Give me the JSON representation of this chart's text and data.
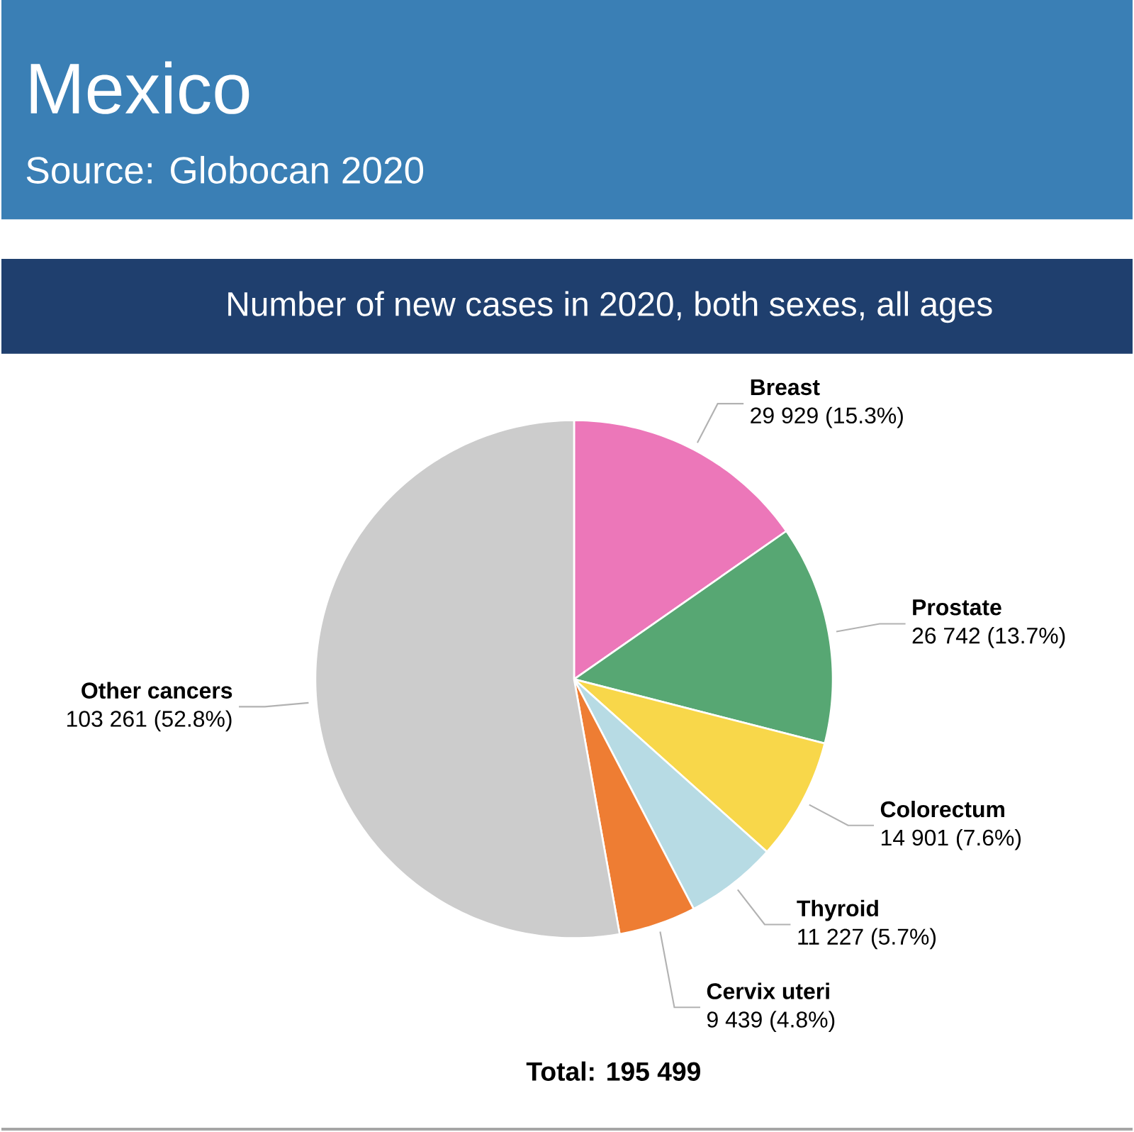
{
  "chart_data": {
    "type": "pie",
    "title": "Mexico",
    "subtitle": "Number of new cases in 2020, both sexes, all ages",
    "categories": [
      "Breast",
      "Prostate",
      "Colorectum",
      "Thyroid",
      "Cervix uteri",
      "Other cancers"
    ],
    "values": [
      29929,
      26742,
      14901,
      11227,
      9439,
      103261
    ],
    "colors": [
      "#ec77b9",
      "#57a773",
      "#f8d74a",
      "#b7dbe4",
      "#ee7d33",
      "#cccccc"
    ],
    "value_labels": [
      "29 929 (15.3%)",
      "26 742 (13.7%)",
      "14 901 (7.6%)",
      "11 227 (5.7%)",
      "9 439 (4.8%)",
      "103 261 (52.8%)"
    ],
    "annotations": [
      "Source: Globocan 2020",
      "Total: 195 499"
    ]
  }
}
